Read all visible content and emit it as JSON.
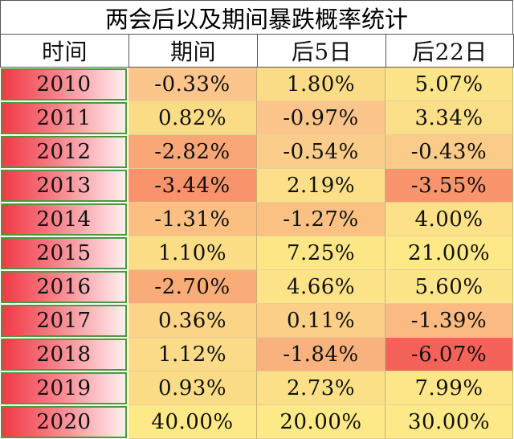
{
  "title": "两会后以及期间暴跌概率统计",
  "headers": [
    "时间",
    "期间",
    "后5日",
    "后22日"
  ],
  "rows": [
    {
      "year": "2010",
      "during": "-0.33%",
      "after5": "1.80%",
      "after22": "5.07%",
      "colors": [
        "#fbc58c",
        "#fbdc86",
        "#fce488"
      ]
    },
    {
      "year": "2011",
      "during": "0.82%",
      "after5": "-0.97%",
      "after22": "3.34%",
      "colors": [
        "#fbdc86",
        "#fbc58c",
        "#fbdf88"
      ]
    },
    {
      "year": "2012",
      "during": "-2.82%",
      "after5": "-0.54%",
      "after22": "-0.43%",
      "colors": [
        "#f9a777",
        "#fbcd8a",
        "#fbcb89"
      ]
    },
    {
      "year": "2013",
      "during": "-3.44%",
      "after5": "2.19%",
      "after22": "-3.55%",
      "colors": [
        "#f8936b",
        "#fcdf88",
        "#f8956c"
      ]
    },
    {
      "year": "2014",
      "during": "-1.31%",
      "after5": "-1.27%",
      "after22": "4.00%",
      "colors": [
        "#fbbf82",
        "#fac183",
        "#fce188"
      ]
    },
    {
      "year": "2015",
      "during": "1.10%",
      "after5": "7.25%",
      "after22": "21.00%",
      "colors": [
        "#fbdd86",
        "#fce686",
        "#fde987"
      ]
    },
    {
      "year": "2016",
      "during": "-2.70%",
      "after5": "4.66%",
      "after22": "5.60%",
      "colors": [
        "#f9ab78",
        "#fce387",
        "#fce488"
      ]
    },
    {
      "year": "2017",
      "during": "0.36%",
      "after5": "0.11%",
      "after22": "-1.39%",
      "colors": [
        "#fbd487",
        "#fbcf88",
        "#faba81"
      ]
    },
    {
      "year": "2018",
      "during": "1.12%",
      "after5": "-1.84%",
      "after22": "-6.07%",
      "colors": [
        "#fbdb88",
        "#f9b27d",
        "#f5625a"
      ]
    },
    {
      "year": "2019",
      "during": "0.93%",
      "after5": "2.73%",
      "after22": "7.99%",
      "colors": [
        "#fbdc86",
        "#fce087",
        "#fde687"
      ]
    },
    {
      "year": "2020",
      "during": "40.00%",
      "after5": "20.00%",
      "after22": "30.00%",
      "colors": [
        "#fde987",
        "#fde987",
        "#fde987"
      ]
    }
  ]
}
